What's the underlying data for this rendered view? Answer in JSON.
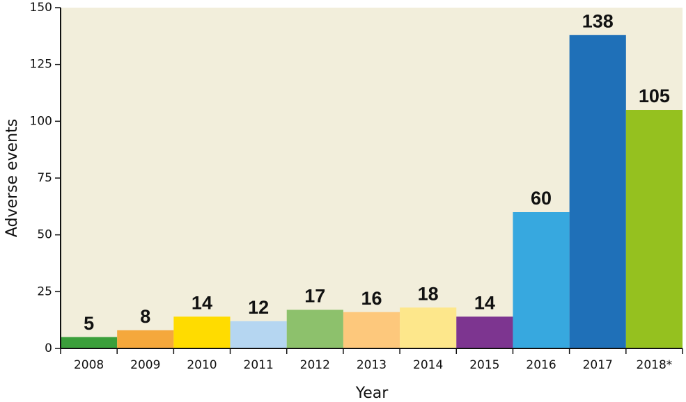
{
  "chart_data": {
    "type": "bar",
    "x_label": "Year",
    "y_label": "Adverse events",
    "categories": [
      "2008",
      "2009",
      "2010",
      "2011",
      "2012",
      "2013",
      "2014",
      "2015",
      "2016",
      "2017",
      "2018*"
    ],
    "values": [
      5,
      8,
      14,
      12,
      17,
      16,
      18,
      14,
      60,
      138,
      105
    ],
    "colors": [
      "#3b9f3b",
      "#f5a83c",
      "#ffdc00",
      "#b5d6f1",
      "#8dc16c",
      "#fdc87c",
      "#fde78b",
      "#7d3590",
      "#37a8df",
      "#1f70b8",
      "#95c11f"
    ],
    "ylim": [
      0,
      150
    ],
    "yticks": [
      0,
      25,
      50,
      75,
      100,
      125,
      150
    ],
    "background": "#f2eedb"
  }
}
